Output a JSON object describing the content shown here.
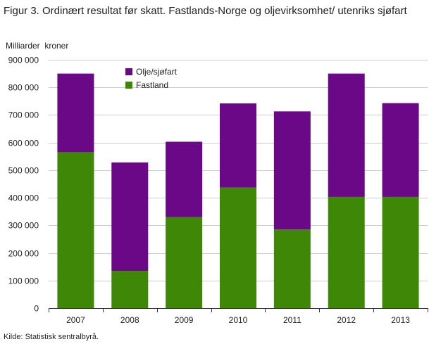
{
  "header": {
    "title": "Figur 3. Ordinært resultat før skatt. Fastlands-Norge og oljevirksomhet/ utenriks sjøfart",
    "unit": "Milliarder  kroner"
  },
  "footer": {
    "source": "Kilde: Statistisk sentralbyrå."
  },
  "colors": {
    "fastland": "#3f8707",
    "olje": "#6a0888",
    "grid": "#cccccc",
    "axis": "#333333"
  },
  "chart_data": {
    "type": "bar",
    "stacked": true,
    "categories": [
      "2007",
      "2008",
      "2009",
      "2010",
      "2011",
      "2012",
      "2013"
    ],
    "series": [
      {
        "name": "Fastland",
        "values": [
          565000,
          135000,
          330000,
          437000,
          285000,
          403000,
          403000
        ]
      },
      {
        "name": "Olje/sjøfart",
        "values": [
          285000,
          393000,
          273000,
          305000,
          428000,
          447000,
          340000
        ]
      }
    ],
    "ylim": [
      0,
      900000
    ],
    "yticks": [
      0,
      100000,
      200000,
      300000,
      400000,
      500000,
      600000,
      700000,
      800000,
      900000
    ],
    "ytick_labels": [
      "0",
      "100 000",
      "200 000",
      "300 000",
      "400 000",
      "500 000",
      "600 000",
      "700 000",
      "800 000",
      "900 000"
    ],
    "legend": {
      "position": "top-left inside",
      "items": [
        {
          "label": "Olje/sjøfart",
          "series": "Olje/sjøfart"
        },
        {
          "label": "Fastland",
          "series": "Fastland"
        }
      ]
    },
    "grid": true
  }
}
